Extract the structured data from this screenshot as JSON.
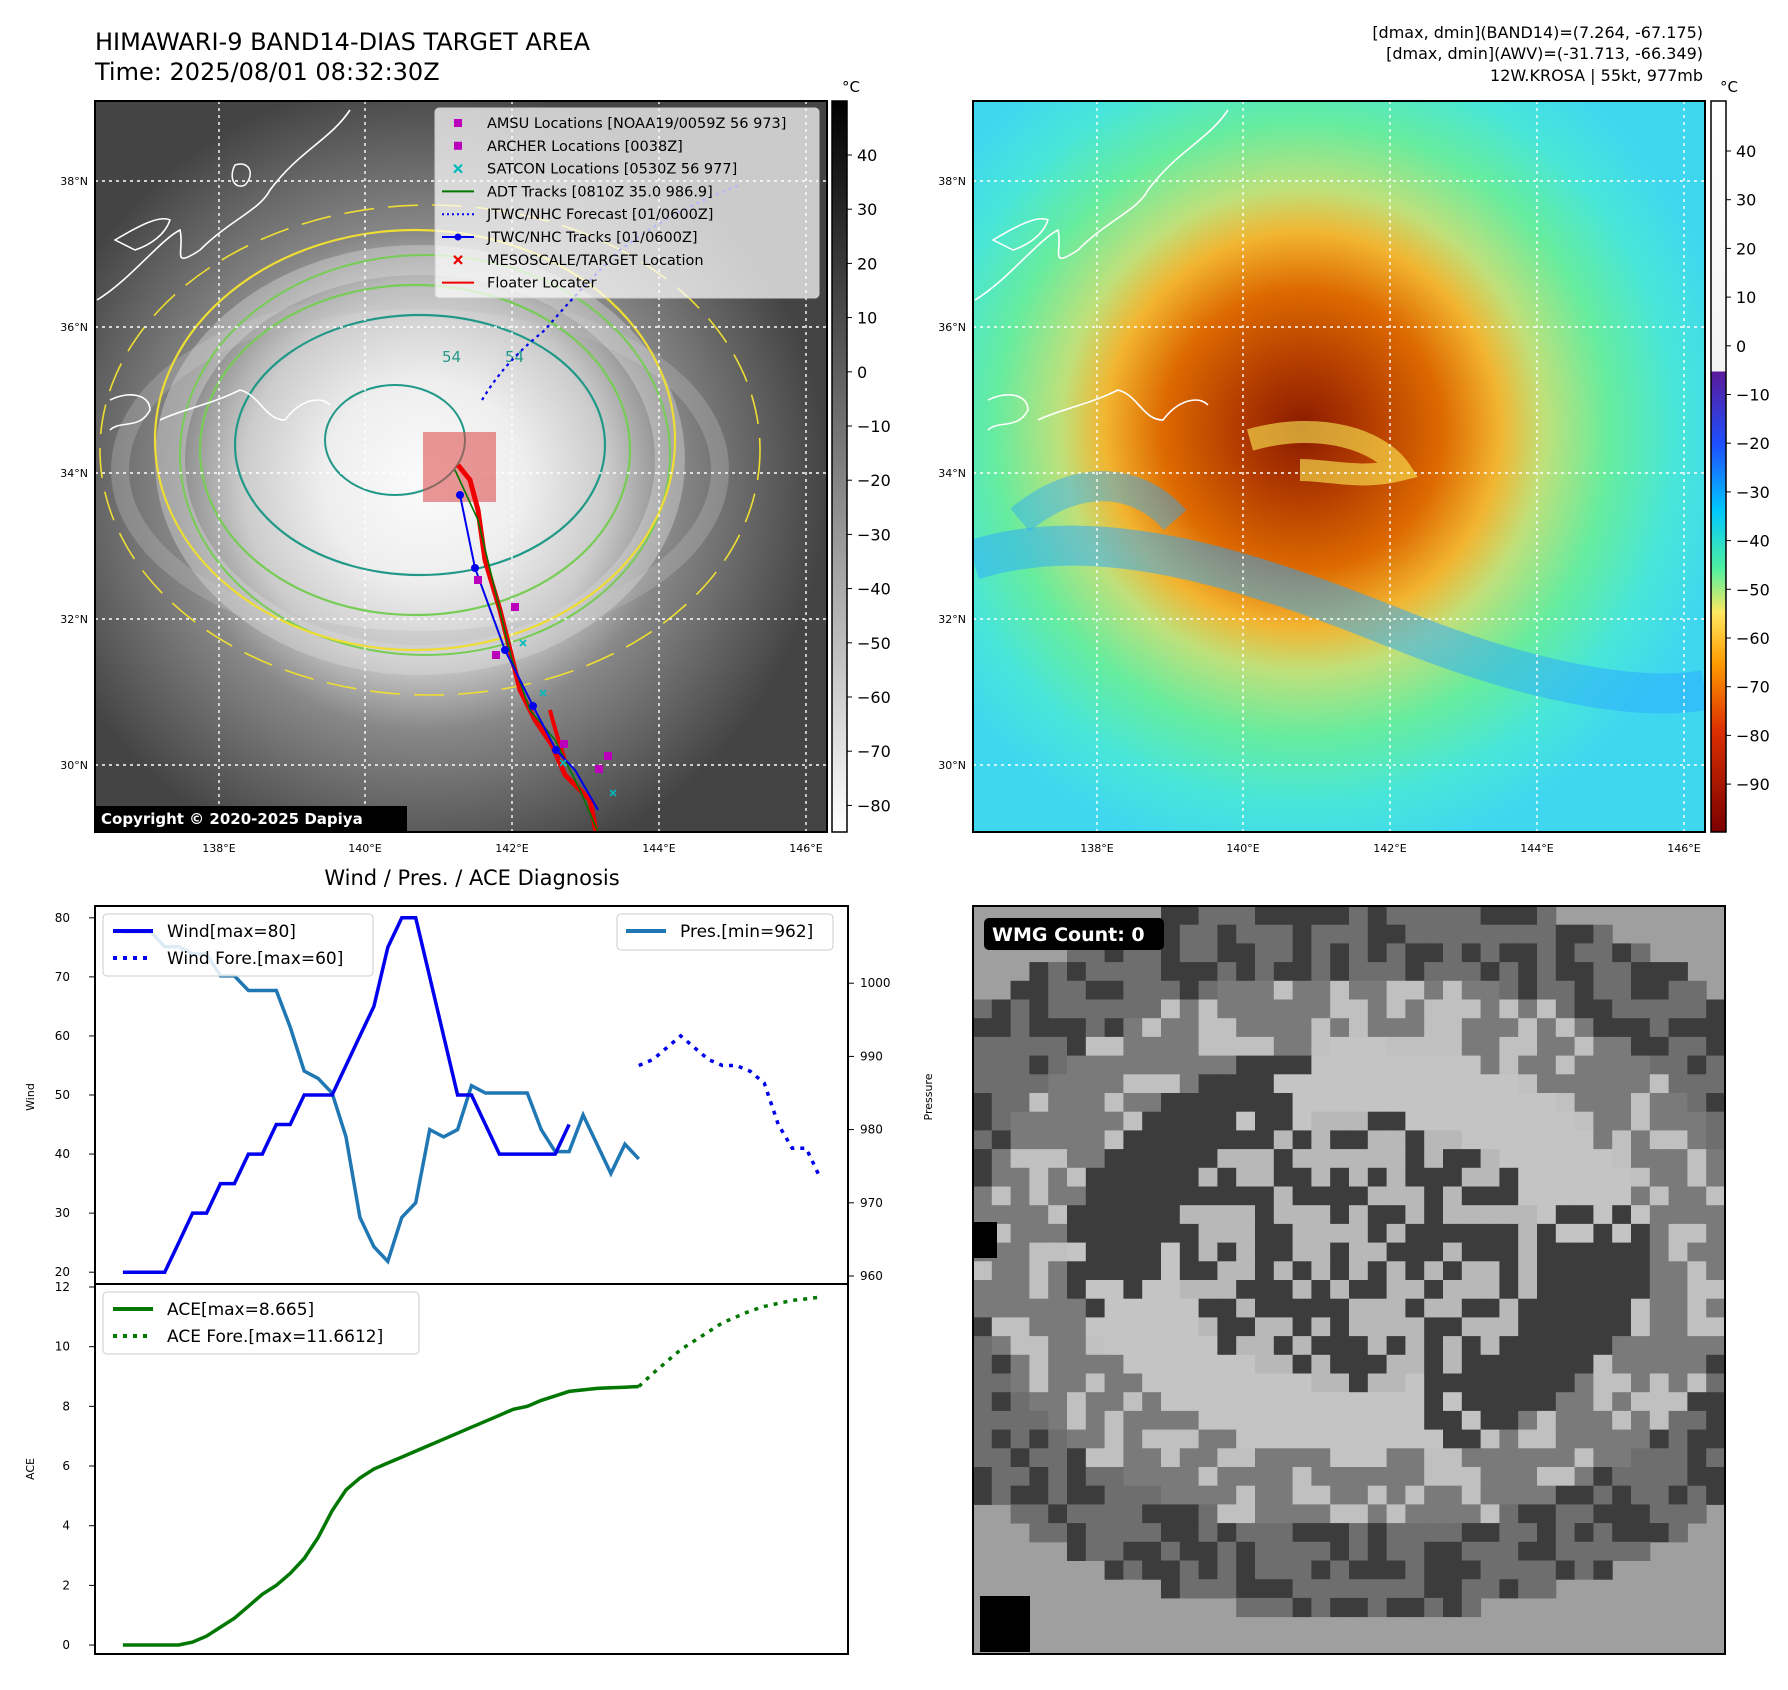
{
  "header": {
    "title": "HIMAWARI-9 BAND14-DIAS TARGET AREA",
    "time": "Time: 2025/08/01 08:32:30Z",
    "dmax_band14": "[dmax, dmin](BAND14)=(7.264, -67.175)",
    "dmax_awv": "[dmax, dmin](AWV)=(-31.713, -66.349)",
    "storm": "12W.KROSA | 55kt, 977mb",
    "copyright": "Copyright © 2020-2025 Dapiya"
  },
  "colors": {
    "wind": "#0000ee",
    "pressure": "#1f77b4",
    "ace": "#007700",
    "track_red": "#ee0000",
    "amsu": "#bb00bb",
    "satcon": "#00bbbb",
    "contour_yellow": "#eedd33",
    "contour_green": "#77cc55",
    "contour_teal": "#229988"
  },
  "maps": {
    "lon_ticks": [
      "138°E",
      "140°E",
      "142°E",
      "144°E",
      "146°E"
    ],
    "lat_ticks": [
      "38°N",
      "36°N",
      "34°N",
      "32°N",
      "30°N"
    ],
    "contour_label": "54",
    "left_colorbar": {
      "unit": "°C",
      "ticks": [
        "40",
        "30",
        "20",
        "10",
        "0",
        "−10",
        "−20",
        "−30",
        "−40",
        "−50",
        "−60",
        "−70",
        "−80"
      ]
    },
    "right_colorbar": {
      "unit": "°C",
      "ticks": [
        "40",
        "30",
        "20",
        "10",
        "0",
        "−10",
        "−20",
        "−30",
        "−40",
        "−50",
        "−60",
        "−70",
        "−80",
        "−90"
      ]
    },
    "legend": [
      {
        "label": "AMSU Locations [NOAA19/0059Z 56 973]",
        "marker": "square",
        "color": "#bb00bb"
      },
      {
        "label": "ARCHER Locations [0038Z]",
        "marker": "square",
        "color": "#bb00bb"
      },
      {
        "label": "SATCON Locations [0530Z 56 977]",
        "marker": "x",
        "color": "#00bbbb"
      },
      {
        "label": "ADT Tracks [0810Z 35.0 986.9]",
        "marker": "line",
        "color": "#007700"
      },
      {
        "label": "JTWC/NHC Forecast [01/0600Z]",
        "marker": "dotted",
        "color": "#0000ee"
      },
      {
        "label": "JTWC/NHC Tracks [01/0600Z]",
        "marker": "dotline",
        "color": "#0000ee"
      },
      {
        "label": "MESOSCALE/TARGET Location",
        "marker": "x",
        "color": "#ee0000"
      },
      {
        "label": "Floater Locater",
        "marker": "line",
        "color": "#ee0000"
      }
    ]
  },
  "diag": {
    "title": "Wind / Pres. / ACE Diagnosis",
    "wind_ylabel": "Wind",
    "pres_ylabel": "Pressure",
    "ace_ylabel": "ACE",
    "wind_legend": [
      "Wind[max=80]",
      "Wind Fore.[max=60]"
    ],
    "pres_legend": "Pres.[min=962]",
    "ace_legend": [
      "ACE[max=8.665]",
      "ACE Fore.[max=11.6612]"
    ],
    "wind_ticks": [
      "20",
      "30",
      "40",
      "50",
      "60",
      "70",
      "80"
    ],
    "pres_ticks": [
      "960",
      "970",
      "980",
      "990",
      "1000"
    ],
    "ace_ticks": [
      "0",
      "2",
      "4",
      "6",
      "8",
      "10",
      "12"
    ]
  },
  "wmg": {
    "label": "WMG Count: 0"
  },
  "chart_data": {
    "type": "line",
    "wind": {
      "name": "Wind[max=80]",
      "x": [
        0,
        1,
        2,
        3,
        4,
        5,
        6,
        7,
        8,
        9,
        10,
        11,
        12,
        13,
        14,
        15,
        16,
        17,
        18,
        19,
        20,
        21,
        22,
        23,
        24,
        25,
        26,
        27,
        28,
        29,
        30,
        31,
        32
      ],
      "values": [
        20,
        20,
        20,
        20,
        25,
        30,
        30,
        35,
        35,
        40,
        40,
        45,
        45,
        50,
        50,
        50,
        55,
        60,
        65,
        75,
        80,
        80,
        70,
        60,
        50,
        50,
        45,
        40,
        40,
        40,
        40,
        40,
        45
      ]
    },
    "wind_forecast": {
      "name": "Wind Fore.[max=60]",
      "x": [
        37,
        38,
        39,
        40,
        41,
        42,
        43,
        44,
        45,
        46,
        47,
        48,
        49,
        50
      ],
      "values": [
        55,
        56,
        58,
        60,
        58,
        56,
        55,
        55,
        54,
        52,
        45,
        41,
        41,
        36
      ]
    },
    "pressure": {
      "name": "Pres.[min=962]",
      "x": [
        0,
        1,
        2,
        3,
        4,
        5,
        6,
        7,
        8,
        9,
        10,
        11,
        12,
        13,
        14,
        15,
        16,
        17,
        18,
        19,
        20,
        21,
        22,
        23,
        24,
        25,
        26,
        27,
        28,
        29,
        30,
        31,
        32,
        33,
        34,
        35,
        36,
        37
      ],
      "values": [
        1007,
        1007,
        1007,
        1005,
        1005,
        1004,
        1004,
        1001,
        1001,
        999,
        999,
        999,
        994,
        988,
        987,
        985,
        979,
        968,
        964,
        962,
        968,
        970,
        980,
        979,
        980,
        986,
        985,
        985,
        985,
        985,
        980,
        977,
        977,
        982,
        978,
        974,
        978,
        976
      ],
      "ylim": [
        960,
        1010
      ]
    },
    "ace": {
      "name": "ACE[max=8.665]",
      "x": [
        0,
        2,
        4,
        5,
        6,
        7,
        8,
        9,
        10,
        11,
        12,
        13,
        14,
        15,
        16,
        17,
        18,
        19,
        20,
        21,
        22,
        23,
        24,
        25,
        26,
        27,
        28,
        29,
        30,
        31,
        32,
        33,
        34,
        35,
        36,
        37
      ],
      "values": [
        0,
        0,
        0,
        0.1,
        0.3,
        0.6,
        0.9,
        1.3,
        1.7,
        2.0,
        2.4,
        2.9,
        3.6,
        4.5,
        5.2,
        5.6,
        5.9,
        6.1,
        6.3,
        6.5,
        6.7,
        6.9,
        7.1,
        7.3,
        7.5,
        7.7,
        7.9,
        8.0,
        8.2,
        8.35,
        8.5,
        8.55,
        8.6,
        8.62,
        8.64,
        8.665
      ]
    },
    "ace_forecast": {
      "name": "ACE Fore.[max=11.6612]",
      "x": [
        37,
        38,
        39,
        40,
        41,
        42,
        43,
        44,
        45,
        46,
        47,
        48,
        49,
        50
      ],
      "values": [
        8.665,
        9.1,
        9.5,
        9.9,
        10.2,
        10.5,
        10.8,
        11.0,
        11.2,
        11.35,
        11.45,
        11.55,
        11.6,
        11.6612
      ]
    },
    "xlim": [
      -2,
      52
    ],
    "wind_ylim": [
      18,
      82
    ],
    "ace_ylim": [
      -0.3,
      12.1
    ]
  }
}
